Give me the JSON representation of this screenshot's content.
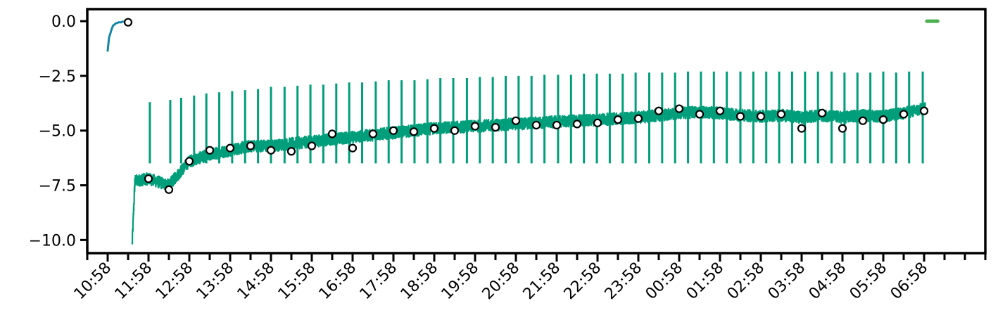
{
  "chart_data": {
    "type": "line",
    "title": "",
    "xlabel": "",
    "ylabel": "",
    "ylim": [
      -10.6,
      0.55
    ],
    "xlim": [
      "10:28",
      "08:28"
    ],
    "grid": false,
    "legend": "none",
    "y_ticks": [
      0.0,
      -2.5,
      -5.0,
      -7.5,
      -10.0
    ],
    "y_tick_labels": [
      "0.0",
      "−2.5",
      "−5.0",
      "−7.5",
      "−10.0"
    ],
    "x_ticks": [
      "10:28",
      "10:58",
      "11:28",
      "11:58",
      "12:28",
      "12:58",
      "13:28",
      "13:58",
      "14:28",
      "14:58",
      "15:28",
      "15:58",
      "16:28",
      "16:58",
      "17:28",
      "17:58",
      "18:28",
      "18:58",
      "19:28",
      "19:58",
      "20:28",
      "20:58",
      "21:28",
      "21:58",
      "22:28",
      "22:58",
      "23:28",
      "23:58",
      "00:28",
      "00:58",
      "01:28",
      "01:58",
      "02:28",
      "02:58",
      "03:28",
      "03:58",
      "04:28",
      "04:58",
      "05:28",
      "05:58",
      "06:28",
      "06:58",
      "07:28",
      "07:58",
      "08:28"
    ],
    "x_tick_labels": [
      "10:58",
      "11:58",
      "12:58",
      "13:58",
      "14:58",
      "15:58",
      "16:58",
      "17:58",
      "18:58",
      "19:58",
      "20:58",
      "21:58",
      "22:58",
      "23:58",
      "00:58",
      "01:58",
      "02:58",
      "03:58",
      "04:58",
      "05:58",
      "06:58"
    ],
    "x_tick_label_positions": [
      "10:58",
      "11:58",
      "12:58",
      "13:58",
      "14:58",
      "15:58",
      "16:58",
      "17:58",
      "18:58",
      "19:58",
      "20:58",
      "21:58",
      "22:58",
      "23:58",
      "00:58",
      "01:58",
      "02:58",
      "03:58",
      "04:58",
      "05:58",
      "06:58"
    ],
    "series": [
      {
        "color": "#1485a8",
        "style": "line",
        "x": [
          "10:58",
          "11:00",
          "11:02",
          "11:04",
          "11:06",
          "11:08",
          "11:10",
          "11:12",
          "11:14",
          "11:16",
          "11:18",
          "11:20",
          "11:22",
          "11:24",
          "11:26",
          "11:28",
          "11:30"
        ],
        "y": [
          -1.35,
          -0.75,
          -0.55,
          -0.35,
          -0.2,
          -0.15,
          -0.1,
          -0.08,
          -0.05,
          -0.05,
          -0.05,
          -0.02,
          -0.02,
          -0.02,
          0.0,
          -0.02,
          0.0
        ]
      },
      {
        "color": "#009e7a",
        "style": "noisy-line",
        "x": [
          "11:34",
          "11:38",
          "11:58",
          "12:28",
          "12:58",
          "13:28",
          "13:58",
          "14:28",
          "14:58",
          "15:28",
          "15:58",
          "16:28",
          "16:58",
          "17:28",
          "17:58",
          "18:28",
          "18:58",
          "19:28",
          "19:58",
          "20:28",
          "20:58",
          "21:28",
          "21:58",
          "22:28",
          "22:58",
          "23:28",
          "23:58",
          "00:28",
          "00:58",
          "01:28",
          "01:58",
          "02:28",
          "02:58",
          "03:28",
          "03:58",
          "04:28",
          "04:58",
          "05:28",
          "05:58",
          "06:28",
          "06:58",
          "07:00"
        ],
        "y": [
          -10.2,
          -7.3,
          -7.2,
          -7.5,
          -6.4,
          -6.1,
          -5.9,
          -5.7,
          -5.7,
          -5.6,
          -5.5,
          -5.4,
          -5.3,
          -5.2,
          -5.1,
          -5.0,
          -4.9,
          -4.85,
          -4.8,
          -4.75,
          -4.7,
          -4.65,
          -4.6,
          -4.55,
          -4.5,
          -4.45,
          -4.4,
          -4.3,
          -4.2,
          -4.15,
          -4.2,
          -4.3,
          -4.35,
          -4.3,
          -4.4,
          -4.3,
          -4.4,
          -4.3,
          -4.35,
          -4.2,
          -4.0,
          -3.9
        ],
        "spike_times": [
          "12:00",
          "12:30",
          "12:46",
          "13:05",
          "13:23",
          "13:42",
          "14:01",
          "14:20",
          "14:39",
          "14:58",
          "15:18",
          "15:37",
          "15:56",
          "16:15",
          "16:34",
          "16:53",
          "17:12",
          "17:32",
          "17:51",
          "18:10",
          "18:29",
          "18:48",
          "19:07",
          "19:26",
          "19:46",
          "20:05",
          "20:24",
          "20:43",
          "21:02",
          "21:21",
          "21:40",
          "22:00",
          "22:19",
          "22:38",
          "22:57",
          "23:16",
          "23:35",
          "23:54",
          "00:14",
          "00:33",
          "00:52",
          "01:11",
          "01:30",
          "01:49",
          "02:08",
          "02:28",
          "02:47",
          "03:06",
          "03:25",
          "03:44",
          "04:03",
          "04:22",
          "04:42",
          "05:01",
          "05:20",
          "05:39",
          "05:58",
          "06:17",
          "06:36",
          "06:56"
        ],
        "spike_peaks": [
          -3.7,
          -3.6,
          -3.5,
          -3.4,
          -3.3,
          -3.25,
          -3.2,
          -3.15,
          -3.1,
          -3.0,
          -3.0,
          -2.95,
          -2.9,
          -2.9,
          -2.85,
          -2.8,
          -2.8,
          -2.75,
          -2.7,
          -2.7,
          -2.7,
          -2.65,
          -2.6,
          -2.6,
          -2.6,
          -2.55,
          -2.55,
          -2.5,
          -2.5,
          -2.5,
          -2.45,
          -2.45,
          -2.45,
          -2.4,
          -2.4,
          -2.4,
          -2.4,
          -2.35,
          -2.35,
          -2.35,
          -2.35,
          -2.3,
          -2.3,
          -2.3,
          -2.3,
          -2.3,
          -2.3,
          -2.3,
          -2.3,
          -2.3,
          -2.3,
          -2.3,
          -2.3,
          -2.35,
          -2.35,
          -2.35,
          -2.3,
          -2.35,
          -2.3,
          -2.3
        ]
      },
      {
        "color": "#4caf50",
        "style": "line",
        "x": [
          "07:02",
          "07:18"
        ],
        "y": [
          0.0,
          0.0
        ]
      }
    ],
    "markers": {
      "x": [
        "11:28",
        "11:58",
        "12:28",
        "12:58",
        "13:28",
        "13:58",
        "14:28",
        "14:58",
        "15:28",
        "15:58",
        "16:28",
        "16:58",
        "17:28",
        "17:58",
        "18:28",
        "18:58",
        "19:28",
        "19:58",
        "20:28",
        "20:58",
        "21:28",
        "21:58",
        "22:28",
        "22:58",
        "23:28",
        "23:58",
        "00:28",
        "00:58",
        "01:28",
        "01:58",
        "02:28",
        "02:58",
        "03:28",
        "03:58",
        "04:28",
        "04:58",
        "05:28",
        "05:58",
        "06:28",
        "06:58",
        "07:28",
        "07:58",
        "08:28"
      ],
      "y": [
        -0.05,
        -7.2,
        -7.7,
        -6.4,
        -5.9,
        -5.8,
        -5.7,
        -5.9,
        -5.95,
        -5.7,
        -5.15,
        -5.8,
        -5.15,
        -5.0,
        -5.05,
        -4.9,
        -5.0,
        -4.8,
        -4.85,
        -4.55,
        -4.75,
        -4.75,
        -4.7,
        -4.65,
        -4.5,
        -4.45,
        -4.1,
        -4.0,
        -4.25,
        -4.1,
        -4.35,
        -4.35,
        -4.25,
        -4.9,
        -4.2,
        -4.9,
        -4.55,
        -4.5,
        -4.25,
        -4.1,
        null,
        null,
        null
      ]
    }
  }
}
